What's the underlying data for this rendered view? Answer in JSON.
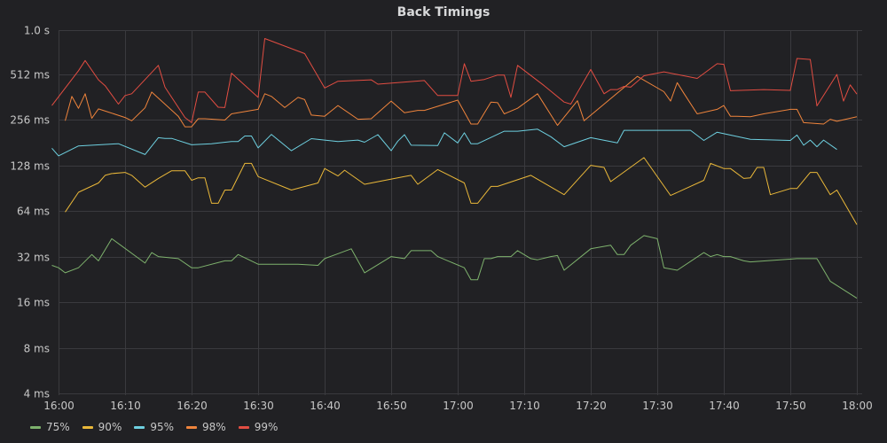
{
  "panel": {
    "title": "Back Timings"
  },
  "chart_data": {
    "type": "line",
    "title": "Back Timings",
    "xlabel": "",
    "ylabel": "",
    "yscale": "log2",
    "ylim_ms": [
      4,
      1000
    ],
    "y_ticks": [
      {
        "value": 1000,
        "label": "1.0 s"
      },
      {
        "value": 512,
        "label": "512 ms"
      },
      {
        "value": 256,
        "label": "256 ms"
      },
      {
        "value": 128,
        "label": "128 ms"
      },
      {
        "value": 64,
        "label": "64 ms"
      },
      {
        "value": 32,
        "label": "32 ms"
      },
      {
        "value": 16,
        "label": "16 ms"
      },
      {
        "value": 8,
        "label": "8 ms"
      },
      {
        "value": 4,
        "label": "4 ms"
      }
    ],
    "x_ticks": [
      "16:00",
      "16:10",
      "16:20",
      "16:30",
      "16:40",
      "16:50",
      "17:00",
      "17:10",
      "17:20",
      "17:30",
      "17:40",
      "17:50",
      "18:00"
    ],
    "xlim": [
      "16:00",
      "18:00"
    ],
    "grid": true,
    "legend_position": "bottom-left",
    "series": [
      {
        "name": "75%",
        "color": "#7eb26d",
        "points": [
          [
            "15:59",
            28
          ],
          [
            "16:00",
            27
          ],
          [
            "16:01",
            25
          ],
          [
            "16:03",
            27
          ],
          [
            "16:05",
            33
          ],
          [
            "16:06",
            30
          ],
          [
            "16:08",
            42
          ],
          [
            "16:13",
            29
          ],
          [
            "16:14",
            34
          ],
          [
            "16:15",
            32
          ],
          [
            "16:18",
            31
          ],
          [
            "16:20",
            27
          ],
          [
            "16:21",
            27
          ],
          [
            "16:25",
            30
          ],
          [
            "16:26",
            30
          ],
          [
            "16:27",
            33
          ],
          [
            "16:30",
            28.5
          ],
          [
            "16:36",
            28.5
          ],
          [
            "16:39",
            28
          ],
          [
            "16:40",
            31
          ],
          [
            "16:44",
            36
          ],
          [
            "16:46",
            25
          ],
          [
            "16:50",
            32
          ],
          [
            "16:52",
            31
          ],
          [
            "16:53",
            35
          ],
          [
            "16:56",
            35
          ],
          [
            "16:57",
            32
          ],
          [
            "17:01",
            27
          ],
          [
            "17:02",
            22.5
          ],
          [
            "17:03",
            22.5
          ],
          [
            "17:04",
            31
          ],
          [
            "17:05",
            31
          ],
          [
            "17:06",
            32
          ],
          [
            "17:08",
            32
          ],
          [
            "17:09",
            35
          ],
          [
            "17:11",
            31
          ],
          [
            "17:12",
            30.5
          ],
          [
            "17:14",
            32
          ],
          [
            "17:15",
            32.5
          ],
          [
            "17:16",
            26
          ],
          [
            "17:20",
            36
          ],
          [
            "17:23",
            38
          ],
          [
            "17:24",
            33
          ],
          [
            "17:25",
            33
          ],
          [
            "17:26",
            38
          ],
          [
            "17:28",
            44
          ],
          [
            "17:30",
            42
          ],
          [
            "17:31",
            27
          ],
          [
            "17:33",
            26
          ],
          [
            "17:37",
            34
          ],
          [
            "17:38",
            32
          ],
          [
            "17:39",
            33
          ],
          [
            "17:40",
            32
          ],
          [
            "17:41",
            32
          ],
          [
            "17:43",
            30
          ],
          [
            "17:44",
            29.5
          ],
          [
            "17:51",
            31
          ],
          [
            "17:54",
            31
          ],
          [
            "17:56",
            22
          ],
          [
            "18:00",
            17
          ]
        ]
      },
      {
        "name": "90%",
        "color": "#eab839",
        "points": [
          [
            "16:01",
            63
          ],
          [
            "16:03",
            85
          ],
          [
            "16:06",
            98
          ],
          [
            "16:07",
            110
          ],
          [
            "16:08",
            113
          ],
          [
            "16:10",
            115
          ],
          [
            "16:11",
            110
          ],
          [
            "16:13",
            92
          ],
          [
            "16:15",
            105
          ],
          [
            "16:17",
            118
          ],
          [
            "16:19",
            118
          ],
          [
            "16:20",
            102
          ],
          [
            "16:21",
            106
          ],
          [
            "16:22",
            106
          ],
          [
            "16:23",
            72
          ],
          [
            "16:24",
            72
          ],
          [
            "16:25",
            88
          ],
          [
            "16:26",
            88
          ],
          [
            "16:28",
            132
          ],
          [
            "16:29",
            132
          ],
          [
            "16:30",
            108
          ],
          [
            "16:35",
            88
          ],
          [
            "16:39",
            98
          ],
          [
            "16:40",
            122
          ],
          [
            "16:42",
            109
          ],
          [
            "16:43",
            119
          ],
          [
            "16:46",
            96
          ],
          [
            "16:52",
            108
          ],
          [
            "16:53",
            110
          ],
          [
            "16:54",
            96
          ],
          [
            "16:57",
            120
          ],
          [
            "17:01",
            98
          ],
          [
            "17:02",
            72
          ],
          [
            "17:03",
            72
          ],
          [
            "17:05",
            93
          ],
          [
            "17:06",
            93
          ],
          [
            "17:11",
            110
          ],
          [
            "17:16",
            82
          ],
          [
            "17:20",
            128
          ],
          [
            "17:22",
            124
          ],
          [
            "17:23",
            100
          ],
          [
            "17:28",
            144
          ],
          [
            "17:32",
            81
          ],
          [
            "17:37",
            102
          ],
          [
            "17:38",
            132
          ],
          [
            "17:40",
            122
          ],
          [
            "17:41",
            122
          ],
          [
            "17:43",
            105
          ],
          [
            "17:44",
            106
          ],
          [
            "17:45",
            124
          ],
          [
            "17:46",
            124
          ],
          [
            "17:47",
            82
          ],
          [
            "17:50",
            90
          ],
          [
            "17:51",
            90
          ],
          [
            "17:53",
            115
          ],
          [
            "17:54",
            115
          ],
          [
            "17:56",
            82
          ],
          [
            "17:57",
            88
          ],
          [
            "18:00",
            52
          ]
        ]
      },
      {
        "name": "95%",
        "color": "#6ed0e0",
        "points": [
          [
            "15:59",
            166
          ],
          [
            "16:00",
            148
          ],
          [
            "16:03",
            172
          ],
          [
            "16:09",
            178
          ],
          [
            "16:13",
            151
          ],
          [
            "16:15",
            195
          ],
          [
            "16:16",
            193
          ],
          [
            "16:17",
            193
          ],
          [
            "16:20",
            175
          ],
          [
            "16:23",
            178
          ],
          [
            "16:26",
            184
          ],
          [
            "16:27",
            184
          ],
          [
            "16:28",
            200
          ],
          [
            "16:29",
            200
          ],
          [
            "16:30",
            167
          ],
          [
            "16:32",
            205
          ],
          [
            "16:35",
            160
          ],
          [
            "16:38",
            192
          ],
          [
            "16:42",
            184
          ],
          [
            "16:45",
            188
          ],
          [
            "16:46",
            182
          ],
          [
            "16:48",
            204
          ],
          [
            "16:50",
            160
          ],
          [
            "16:51",
            185
          ],
          [
            "16:52",
            204
          ],
          [
            "16:53",
            174
          ],
          [
            "16:57",
            173
          ],
          [
            "16:58",
            210
          ],
          [
            "17:00",
            180
          ],
          [
            "17:01",
            210
          ],
          [
            "17:02",
            178
          ],
          [
            "17:03",
            178
          ],
          [
            "17:07",
            215
          ],
          [
            "17:09",
            215
          ],
          [
            "17:12",
            222
          ],
          [
            "17:14",
            198
          ],
          [
            "17:16",
            170
          ],
          [
            "17:20",
            195
          ],
          [
            "17:24",
            180
          ],
          [
            "17:25",
            218
          ],
          [
            "17:35",
            218
          ],
          [
            "17:37",
            187
          ],
          [
            "17:39",
            212
          ],
          [
            "17:44",
            190
          ],
          [
            "17:50",
            187
          ],
          [
            "17:51",
            203
          ],
          [
            "17:52",
            174
          ],
          [
            "17:53",
            188
          ],
          [
            "17:54",
            170
          ],
          [
            "17:55",
            188
          ],
          [
            "17:57",
            163
          ]
        ]
      },
      {
        "name": "98%",
        "color": "#ef843c",
        "points": [
          [
            "16:01",
            252
          ],
          [
            "16:02",
            365
          ],
          [
            "16:03",
            305
          ],
          [
            "16:04",
            380
          ],
          [
            "16:05",
            262
          ],
          [
            "16:06",
            302
          ],
          [
            "16:10",
            265
          ],
          [
            "16:11",
            252
          ],
          [
            "16:13",
            307
          ],
          [
            "16:14",
            390
          ],
          [
            "16:18",
            270
          ],
          [
            "16:19",
            230
          ],
          [
            "16:20",
            230
          ],
          [
            "16:21",
            260
          ],
          [
            "16:22",
            260
          ],
          [
            "16:25",
            255
          ],
          [
            "16:26",
            280
          ],
          [
            "16:30",
            300
          ],
          [
            "16:31",
            380
          ],
          [
            "16:32",
            365
          ],
          [
            "16:34",
            308
          ],
          [
            "16:36",
            360
          ],
          [
            "16:37",
            348
          ],
          [
            "16:38",
            275
          ],
          [
            "16:40",
            270
          ],
          [
            "16:42",
            318
          ],
          [
            "16:45",
            258
          ],
          [
            "16:47",
            260
          ],
          [
            "16:50",
            340
          ],
          [
            "16:52",
            285
          ],
          [
            "16:54",
            295
          ],
          [
            "16:55",
            295
          ],
          [
            "17:00",
            345
          ],
          [
            "17:02",
            240
          ],
          [
            "17:03",
            240
          ],
          [
            "17:05",
            335
          ],
          [
            "17:06",
            332
          ],
          [
            "17:07",
            280
          ],
          [
            "17:09",
            305
          ],
          [
            "17:12",
            380
          ],
          [
            "17:15",
            235
          ],
          [
            "17:18",
            342
          ],
          [
            "17:19",
            252
          ],
          [
            "17:27",
            495
          ],
          [
            "17:31",
            392
          ],
          [
            "17:32",
            340
          ],
          [
            "17:33",
            450
          ],
          [
            "17:34",
            383
          ],
          [
            "17:36",
            280
          ],
          [
            "17:39",
            300
          ],
          [
            "17:40",
            318
          ],
          [
            "17:41",
            270
          ],
          [
            "17:42",
            270
          ],
          [
            "17:44",
            268
          ],
          [
            "17:46",
            280
          ],
          [
            "17:50",
            300
          ],
          [
            "17:51",
            300
          ],
          [
            "17:52",
            245
          ],
          [
            "17:55",
            240
          ],
          [
            "17:56",
            258
          ],
          [
            "17:57",
            250
          ],
          [
            "18:00",
            268
          ]
        ]
      },
      {
        "name": "99%",
        "color": "#e24d42",
        "points": [
          [
            "15:59",
            318
          ],
          [
            "16:03",
            540
          ],
          [
            "16:04",
            630
          ],
          [
            "16:06",
            470
          ],
          [
            "16:07",
            430
          ],
          [
            "16:09",
            325
          ],
          [
            "16:10",
            370
          ],
          [
            "16:11",
            380
          ],
          [
            "16:15",
            585
          ],
          [
            "16:16",
            420
          ],
          [
            "16:19",
            265
          ],
          [
            "16:20",
            245
          ],
          [
            "16:21",
            390
          ],
          [
            "16:22",
            390
          ],
          [
            "16:24",
            310
          ],
          [
            "16:25",
            308
          ],
          [
            "16:26",
            520
          ],
          [
            "16:30",
            360
          ],
          [
            "16:31",
            880
          ],
          [
            "16:37",
            700
          ],
          [
            "16:40",
            415
          ],
          [
            "16:42",
            460
          ],
          [
            "16:47",
            470
          ],
          [
            "16:48",
            440
          ],
          [
            "16:55",
            465
          ],
          [
            "16:57",
            370
          ],
          [
            "17:00",
            370
          ],
          [
            "17:01",
            600
          ],
          [
            "17:02",
            460
          ],
          [
            "17:04",
            472
          ],
          [
            "17:06",
            505
          ],
          [
            "17:07",
            505
          ],
          [
            "17:08",
            360
          ],
          [
            "17:09",
            585
          ],
          [
            "17:13",
            430
          ],
          [
            "17:16",
            335
          ],
          [
            "17:17",
            325
          ],
          [
            "17:20",
            550
          ],
          [
            "17:22",
            380
          ],
          [
            "17:23",
            405
          ],
          [
            "17:24",
            405
          ],
          [
            "17:25",
            425
          ],
          [
            "17:26",
            420
          ],
          [
            "17:28",
            500
          ],
          [
            "17:31",
            530
          ],
          [
            "17:36",
            480
          ],
          [
            "17:39",
            600
          ],
          [
            "17:40",
            595
          ],
          [
            "17:41",
            398
          ],
          [
            "17:46",
            405
          ],
          [
            "17:50",
            400
          ],
          [
            "17:51",
            650
          ],
          [
            "17:53",
            640
          ],
          [
            "17:54",
            316
          ],
          [
            "17:57",
            510
          ],
          [
            "17:58",
            340
          ],
          [
            "17:59",
            435
          ],
          [
            "18:00",
            378
          ]
        ]
      }
    ]
  }
}
